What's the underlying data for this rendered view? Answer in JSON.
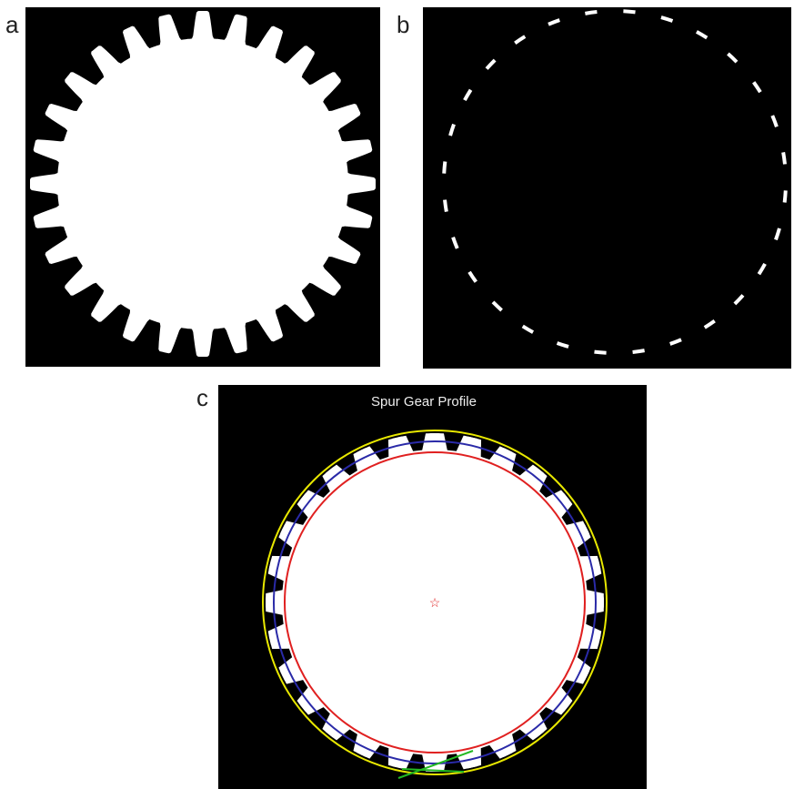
{
  "panels": [
    {
      "label": "a"
    },
    {
      "label": "b"
    },
    {
      "label": "c",
      "title": "Spur Gear Profile"
    }
  ]
}
